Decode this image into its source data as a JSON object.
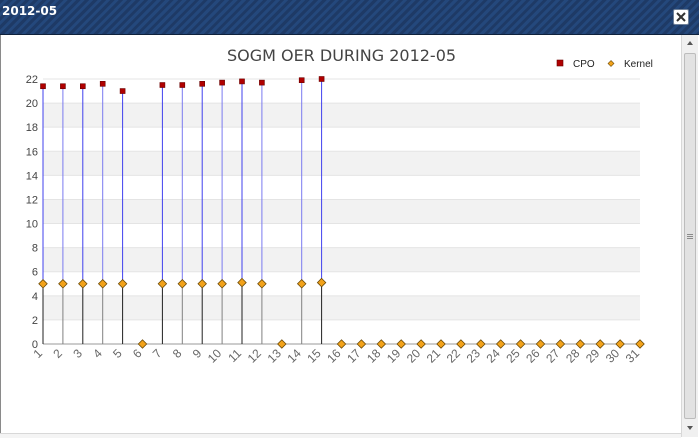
{
  "window": {
    "title": "2012-05",
    "close_icon": "close-icon"
  },
  "chart_data": {
    "type": "scatter",
    "title": "SOGM OER DURING 2012-05",
    "xlabel": "",
    "ylabel": "",
    "ylim": [
      0,
      22
    ],
    "yticks": [
      0,
      2,
      4,
      6,
      8,
      10,
      12,
      14,
      16,
      18,
      20,
      22
    ],
    "categories": [
      "1",
      "2",
      "3",
      "4",
      "5",
      "6",
      "7",
      "8",
      "9",
      "10",
      "11",
      "12",
      "13",
      "14",
      "15",
      "16",
      "17",
      "18",
      "19",
      "20",
      "21",
      "22",
      "23",
      "24",
      "25",
      "26",
      "27",
      "28",
      "29",
      "30",
      "31"
    ],
    "legend_position": "top-right",
    "grid": "horizontal-bands",
    "series": [
      {
        "name": "CPO",
        "marker": "square",
        "color": "#b00000",
        "values": [
          21.4,
          21.4,
          21.4,
          21.6,
          21.0,
          null,
          21.5,
          21.5,
          21.6,
          21.7,
          21.8,
          21.7,
          null,
          21.9,
          22.0,
          null,
          null,
          null,
          null,
          null,
          null,
          null,
          null,
          null,
          null,
          null,
          null,
          null,
          null,
          null,
          null
        ]
      },
      {
        "name": "Kernel",
        "marker": "diamond",
        "color": "#f2a21a",
        "values": [
          5.0,
          5.0,
          5.0,
          5.0,
          5.0,
          0,
          5.0,
          5.0,
          5.0,
          5.0,
          5.1,
          5.0,
          0,
          5.0,
          5.1,
          0,
          0,
          0,
          0,
          0,
          0,
          0,
          0,
          0,
          0,
          0,
          0,
          0,
          0,
          0,
          0
        ]
      }
    ],
    "colors": {
      "cpo_stem": "#4040ee",
      "kernel_stem": "#202020",
      "band": "#f2f2f2"
    }
  }
}
